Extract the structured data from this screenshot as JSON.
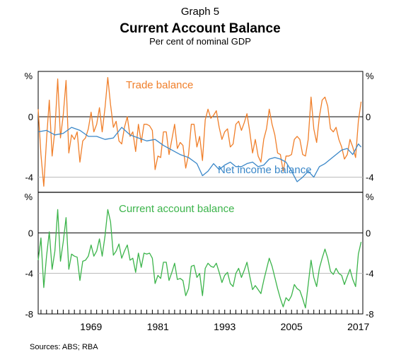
{
  "header": {
    "graph_number": "Graph 5",
    "title": "Current Account Balance",
    "subtitle": "Per cent of nominal GDP"
  },
  "footer": {
    "sources": "Sources:  ABS; RBA"
  },
  "colors": {
    "trade": "#f07f2a",
    "net_income": "#3a87c8",
    "current_account": "#3cb44b"
  },
  "chart_data": [
    {
      "type": "line",
      "panel": "top",
      "unit_label": "%",
      "ylim": [
        -5,
        3
      ],
      "yticks": [
        0,
        -4
      ],
      "ytick_labels": [
        "0",
        "-4"
      ],
      "xlim": [
        1959.5,
        2017.8
      ],
      "grid": true,
      "series": [
        {
          "name": "Trade balance",
          "x": [
            1959.5,
            1960,
            1960.5,
            1961,
            1961.5,
            1962,
            1962.5,
            1963,
            1963.5,
            1964,
            1964.5,
            1965,
            1965.5,
            1966,
            1966.5,
            1967,
            1967.5,
            1968,
            1968.5,
            1969,
            1969.5,
            1970,
            1970.5,
            1971,
            1971.5,
            1972,
            1972.5,
            1973,
            1973.5,
            1974,
            1974.5,
            1975,
            1975.5,
            1976,
            1976.5,
            1977,
            1977.5,
            1978,
            1978.5,
            1979,
            1979.5,
            1980,
            1980.5,
            1981,
            1981.5,
            1982,
            1982.5,
            1983,
            1983.5,
            1984,
            1984.5,
            1985,
            1985.5,
            1986,
            1986.5,
            1987,
            1987.5,
            1988,
            1988.5,
            1989,
            1989.5,
            1990,
            1990.5,
            1991,
            1991.5,
            1992,
            1992.5,
            1993,
            1993.5,
            1994,
            1994.5,
            1995,
            1995.5,
            1996,
            1996.5,
            1997,
            1997.5,
            1998,
            1998.5,
            1999,
            1999.5,
            2000,
            2000.5,
            2001,
            2001.5,
            2002,
            2002.5,
            2003,
            2003.5,
            2004,
            2004.5,
            2005,
            2005.5,
            2006,
            2006.5,
            2007,
            2007.5,
            2008,
            2008.5,
            2009,
            2009.5,
            2010,
            2010.5,
            2011,
            2011.5,
            2012,
            2012.5,
            2013,
            2013.5,
            2014,
            2014.5,
            2015,
            2015.5,
            2016,
            2016.5,
            2017,
            2017.5
          ],
          "values": [
            0.5,
            -2.5,
            -4.6,
            -1.5,
            1.1,
            -2.6,
            -0.9,
            2.5,
            -1.4,
            0.1,
            2.4,
            -2.4,
            -1.2,
            -1.5,
            -1.0,
            -3.0,
            -1.6,
            -1.4,
            -0.8,
            0.3,
            -1.0,
            -0.5,
            0.6,
            -1.0,
            0.6,
            2.6,
            0.8,
            -0.7,
            -0.3,
            -1.6,
            -1.8,
            -0.7,
            0.0,
            -1.3,
            -1.0,
            -2.3,
            -0.5,
            -1.7,
            -0.5,
            -0.5,
            -0.6,
            -0.9,
            -3.5,
            -2.6,
            -2.7,
            -1.0,
            -1.0,
            -2.5,
            -1.5,
            -0.5,
            -2.1,
            -1.7,
            -1.9,
            -3.4,
            -2.5,
            -0.5,
            -0.5,
            -2.0,
            -1.3,
            -2.9,
            -0.2,
            0.5,
            -0.1,
            0.1,
            0.4,
            -0.7,
            -1.5,
            -1.0,
            -0.8,
            -2.0,
            -1.8,
            -0.5,
            -0.3,
            -0.9,
            -0.4,
            0.2,
            -1.0,
            -2.4,
            -1.5,
            -2.6,
            -3.0,
            -1.5,
            -0.8,
            0.5,
            -0.5,
            -1.2,
            -2.4,
            -2.5,
            -3.6,
            -2.6,
            -2.6,
            -2.5,
            -1.5,
            -1.3,
            -1.5,
            -2.5,
            -2.6,
            -1.5,
            1.3,
            -0.8,
            -1.7,
            0.0,
            1.1,
            1.3,
            0.7,
            -0.8,
            -1.0,
            -0.7,
            -1.5,
            -2.0,
            -2.8,
            -2.5,
            -1.5,
            -2.0,
            -2.7,
            -0.3,
            1.0
          ]
        },
        {
          "name": "Net income balance",
          "x": [
            1959.5,
            1961,
            1962.5,
            1964,
            1965.5,
            1967,
            1968.5,
            1970,
            1971.5,
            1973,
            1974.5,
            1976,
            1977.5,
            1979,
            1980.5,
            1982,
            1983.5,
            1985,
            1986.5,
            1988,
            1989,
            1990,
            1991,
            1992,
            1993,
            1994,
            1995,
            1996,
            1997,
            1998,
            1999,
            2000,
            2001,
            2002,
            2003,
            2004,
            2005,
            2006,
            2007,
            2008,
            2009,
            2010,
            2011,
            2012,
            2013,
            2014,
            2015,
            2016,
            2017,
            2017.5
          ],
          "values": [
            -1.0,
            -0.9,
            -1.2,
            -1.1,
            -0.7,
            -0.9,
            -1.3,
            -1.3,
            -1.5,
            -1.4,
            -0.7,
            -1.2,
            -1.4,
            -1.6,
            -1.5,
            -1.9,
            -2.2,
            -2.5,
            -2.7,
            -3.1,
            -3.9,
            -3.6,
            -3.1,
            -3.5,
            -3.2,
            -3.0,
            -3.3,
            -3.3,
            -3.1,
            -3.0,
            -3.3,
            -3.2,
            -2.8,
            -2.7,
            -2.8,
            -3.0,
            -3.6,
            -4.3,
            -4.0,
            -3.6,
            -4.0,
            -3.3,
            -3.1,
            -2.8,
            -2.5,
            -2.2,
            -2.1,
            -2.5,
            -1.8,
            -2.0
          ]
        }
      ],
      "annotations": [
        {
          "text": "Trade balance",
          "series": "Trade balance"
        },
        {
          "text": "Net income balance",
          "series": "Net income balance"
        }
      ]
    },
    {
      "type": "line",
      "panel": "bottom",
      "unit_label": "%",
      "ylim": [
        -8,
        4
      ],
      "yticks": [
        0,
        -4,
        -8
      ],
      "ytick_labels": [
        "0",
        "-4",
        "-8"
      ],
      "xlim": [
        1959.5,
        2017.8
      ],
      "xticks": [
        1969,
        1981,
        1993,
        2005,
        2017
      ],
      "xtick_labels": [
        "1969",
        "1981",
        "1993",
        "2005",
        "2017"
      ],
      "grid": true,
      "series": [
        {
          "name": "Current account balance",
          "x": [
            1959.5,
            1960,
            1960.5,
            1961,
            1961.5,
            1962,
            1962.5,
            1963,
            1963.5,
            1964,
            1964.5,
            1965,
            1965.5,
            1966,
            1966.5,
            1967,
            1967.5,
            1968,
            1968.5,
            1969,
            1969.5,
            1970,
            1970.5,
            1971,
            1971.5,
            1972,
            1972.5,
            1973,
            1973.5,
            1974,
            1974.5,
            1975,
            1975.5,
            1976,
            1976.5,
            1977,
            1977.5,
            1978,
            1978.5,
            1979,
            1979.5,
            1980,
            1980.5,
            1981,
            1981.5,
            1982,
            1982.5,
            1983,
            1983.5,
            1984,
            1984.5,
            1985,
            1985.5,
            1986,
            1986.5,
            1987,
            1987.5,
            1988,
            1988.5,
            1989,
            1989.5,
            1990,
            1990.5,
            1991,
            1991.5,
            1992,
            1992.5,
            1993,
            1993.5,
            1994,
            1994.5,
            1995,
            1995.5,
            1996,
            1996.5,
            1997,
            1997.5,
            1998,
            1998.5,
            1999,
            1999.5,
            2000,
            2000.5,
            2001,
            2001.5,
            2002,
            2002.5,
            2003,
            2003.5,
            2004,
            2004.5,
            2005,
            2005.5,
            2006,
            2006.5,
            2007,
            2007.5,
            2008,
            2008.5,
            2009,
            2009.5,
            2010,
            2010.5,
            2011,
            2011.5,
            2012,
            2012.5,
            2013,
            2013.5,
            2014,
            2014.5,
            2015,
            2015.5,
            2016,
            2016.5,
            2017,
            2017.5
          ],
          "values": [
            -2.7,
            -0.5,
            -5.4,
            -2.3,
            0.1,
            -3.6,
            -1.8,
            2.3,
            -2.8,
            -0.9,
            1.5,
            -3.6,
            -2.1,
            -2.3,
            -2.4,
            -4.7,
            -2.8,
            -2.7,
            -2.3,
            -1.2,
            -2.3,
            -1.8,
            -0.6,
            -2.3,
            -0.3,
            2.3,
            1.1,
            -2.2,
            -1.8,
            -1.1,
            -2.5,
            -1.8,
            -1.2,
            -2.7,
            -2.5,
            -3.9,
            -2.0,
            -3.4,
            -2.0,
            -2.1,
            -2.0,
            -2.5,
            -5.0,
            -4.2,
            -4.5,
            -2.9,
            -2.9,
            -4.7,
            -3.9,
            -3.0,
            -4.6,
            -4.5,
            -4.7,
            -6.2,
            -5.5,
            -3.3,
            -3.2,
            -4.4,
            -4.0,
            -6.2,
            -3.5,
            -3.0,
            -3.3,
            -3.4,
            -3.0,
            -3.9,
            -4.9,
            -4.2,
            -3.9,
            -5.0,
            -5.3,
            -4.0,
            -3.5,
            -4.4,
            -3.7,
            -2.9,
            -4.3,
            -5.6,
            -5.2,
            -5.6,
            -6.0,
            -4.7,
            -3.6,
            -2.5,
            -3.3,
            -4.4,
            -5.5,
            -6.5,
            -7.3,
            -6.4,
            -6.7,
            -6.2,
            -5.1,
            -5.5,
            -5.7,
            -6.5,
            -7.4,
            -5.1,
            -2.7,
            -4.4,
            -5.3,
            -3.5,
            -2.5,
            -1.6,
            -2.5,
            -3.8,
            -4.1,
            -3.5,
            -4.0,
            -4.2,
            -5.1,
            -4.3,
            -3.6,
            -4.6,
            -5.3,
            -2.1,
            -0.9
          ]
        }
      ],
      "annotations": [
        {
          "text": "Current account balance",
          "series": "Current account balance"
        }
      ]
    }
  ]
}
